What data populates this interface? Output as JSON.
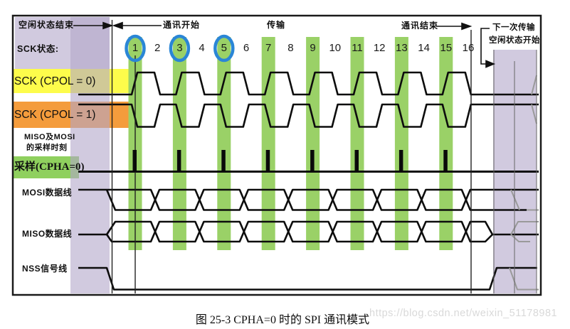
{
  "diagram": {
    "top_annotations": {
      "idle_end": "空闲状态结束",
      "comm_start": "通讯开始",
      "transfer": "传输",
      "comm_end": "通讯结束",
      "next_transfer_line1": "下一次传输",
      "next_transfer_line2": "空闲状态开始"
    },
    "row_labels": {
      "sck_state_label": "SCK状态:",
      "cpol0": "SCK (CPOL = 0)",
      "cpol1": "SCK (CPOL = 1)",
      "sampling_note_line1": "MISO及MOSI",
      "sampling_note_line2": "的采样时刻",
      "sampling_label": "采样(CPHA=0)",
      "mosi": "MOSI数据线",
      "miso": "MISO数据线",
      "nss": "NSS信号线"
    },
    "sck_states": [
      "1",
      "2",
      "3",
      "4",
      "5",
      "6",
      "7",
      "8",
      "9",
      "10",
      "11",
      "12",
      "13",
      "14",
      "15",
      "16"
    ],
    "sampled_states": [
      1,
      3,
      5,
      7,
      9,
      11,
      13,
      15
    ],
    "circled_states": [
      1,
      3,
      5
    ],
    "colors": {
      "cpol0_highlight": "#fdfc4b",
      "cpol1_highlight": "#f49c3c",
      "sampling_label_highlight": "#8fd05e",
      "sample_bar": "#9ad167",
      "idle_region": "#b3a6c9",
      "circle": "#2a86d6"
    }
  },
  "caption": "图 25-3 CPHA=0 时的 SPI 通讯模式",
  "watermark": "https://blog.csdn.net/weixin_51178981"
}
